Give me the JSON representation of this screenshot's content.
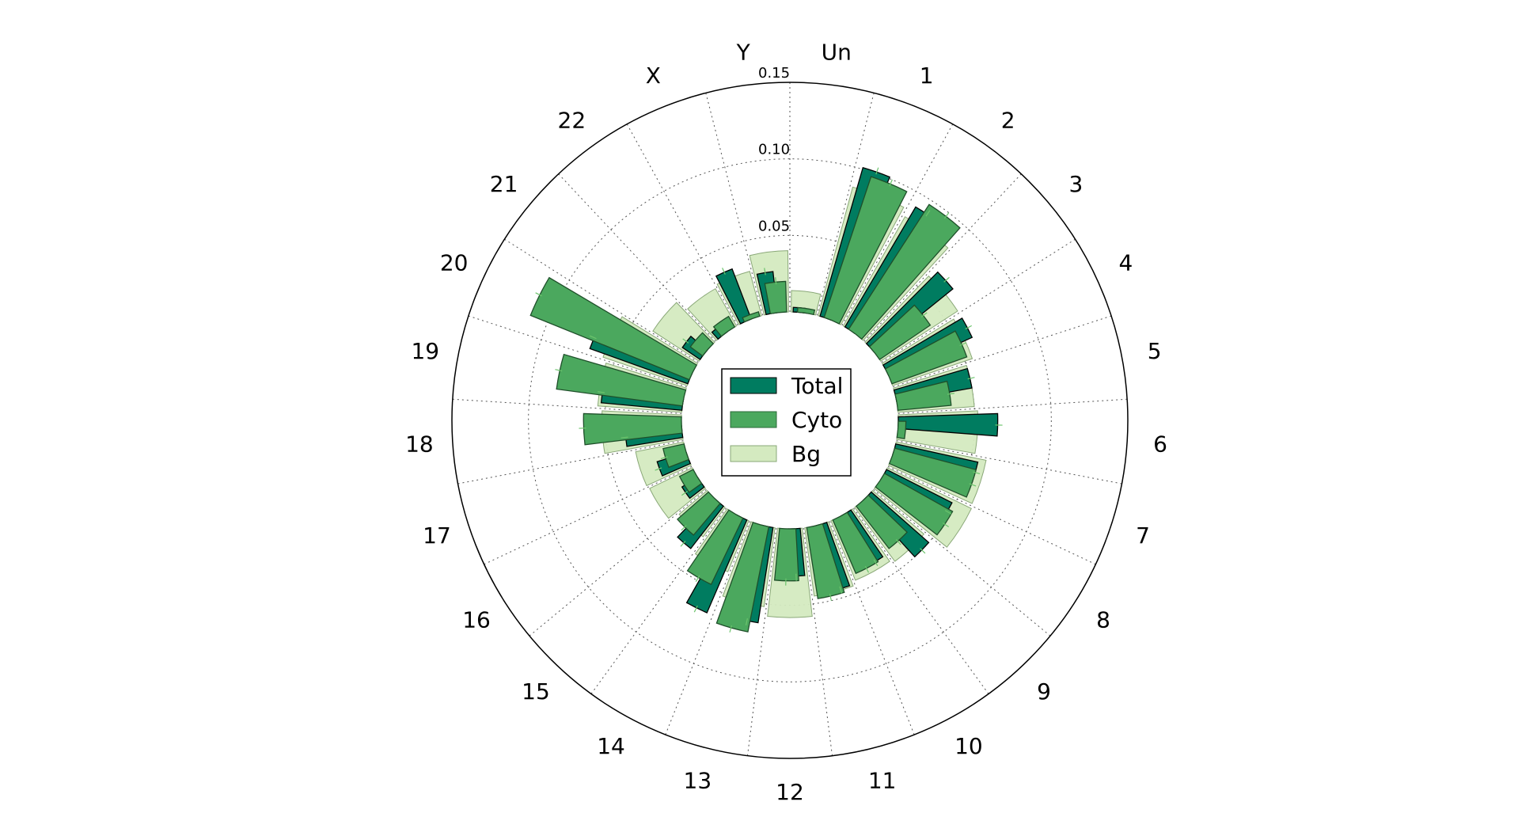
{
  "chart_data": {
    "type": "bar",
    "subtype": "polar",
    "title": "",
    "categories": [
      "Un",
      "1",
      "2",
      "3",
      "4",
      "5",
      "6",
      "7",
      "8",
      "9",
      "10",
      "11",
      "12",
      "13",
      "14",
      "15",
      "16",
      "17",
      "18",
      "19",
      "20",
      "21",
      "22",
      "X",
      "Y"
    ],
    "series": [
      {
        "name": "Bg",
        "color": "#d4eac0",
        "values": [
          0.014,
          0.087,
          0.082,
          0.06,
          0.055,
          0.05,
          0.052,
          0.06,
          0.061,
          0.044,
          0.042,
          0.045,
          0.058,
          0.052,
          0.036,
          0.024,
          0.031,
          0.032,
          0.052,
          0.055,
          0.058,
          0.036,
          0.028,
          0.03,
          0.04
        ]
      },
      {
        "name": "Cyto",
        "color": "#4ba85e",
        "values": [
          0.003,
          0.097,
          0.097,
          0.04,
          0.052,
          0.035,
          0.005,
          0.055,
          0.051,
          0.035,
          0.038,
          0.047,
          0.034,
          0.07,
          0.048,
          0.027,
          0.01,
          0.014,
          0.064,
          0.083,
          0.112,
          0.01,
          0.008,
          0.003,
          0.02
        ]
      },
      {
        "name": "Total",
        "color": "#007c60",
        "values": [
          0.003,
          0.101,
          0.091,
          0.066,
          0.06,
          0.05,
          0.065,
          0.055,
          0.048,
          0.05,
          0.037,
          0.044,
          0.031,
          0.063,
          0.066,
          0.035,
          0.012,
          0.02,
          0.037,
          0.053,
          0.068,
          0.014,
          0.006,
          0.035,
          0.027
        ]
      }
    ],
    "radial_ticks": [
      0.05,
      0.1,
      0.15
    ],
    "tick_labels": [
      "0.05",
      "0.10",
      "0.15"
    ],
    "rlim": [
      0,
      0.15
    ],
    "grid": true,
    "legend": {
      "position": "center",
      "entries": [
        "Total",
        "Cyto",
        "Bg"
      ]
    }
  }
}
